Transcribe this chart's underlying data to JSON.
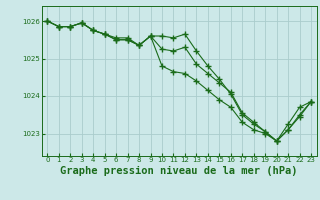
{
  "background_color": "#cce8e8",
  "grid_color": "#aacccc",
  "line_color": "#1a6b1a",
  "marker": "+",
  "marker_size": 4,
  "marker_lw": 1.0,
  "title": "Graphe pression niveau de la mer (hPa)",
  "title_fontsize": 7.5,
  "xlim": [
    -0.5,
    23.5
  ],
  "ylim": [
    1022.4,
    1026.4
  ],
  "yticks": [
    1023,
    1024,
    1025,
    1026
  ],
  "xticks": [
    0,
    1,
    2,
    3,
    4,
    5,
    6,
    7,
    8,
    9,
    10,
    11,
    12,
    13,
    14,
    15,
    16,
    17,
    18,
    19,
    20,
    21,
    22,
    23
  ],
  "series": [
    [
      1026.0,
      1025.85,
      1025.85,
      1025.95,
      1025.75,
      1025.65,
      1025.55,
      1025.55,
      1025.35,
      1025.6,
      1025.25,
      1025.2,
      1025.3,
      1024.85,
      1024.6,
      1024.35,
      1024.1,
      1023.55,
      1023.3,
      1023.05,
      1022.8,
      1023.25,
      1023.7,
      1023.85
    ],
    [
      1026.0,
      1025.85,
      1025.85,
      1025.95,
      1025.75,
      1025.65,
      1025.5,
      1025.5,
      1025.35,
      1025.6,
      1024.8,
      1024.65,
      1024.6,
      1024.4,
      1024.15,
      1023.9,
      1023.7,
      1023.3,
      1023.1,
      1023.0,
      1022.8,
      1023.1,
      1023.5,
      1023.85
    ],
    [
      1026.0,
      1025.85,
      1025.85,
      1025.95,
      1025.75,
      1025.65,
      1025.5,
      1025.5,
      1025.35,
      1025.6,
      1025.6,
      1025.55,
      1025.65,
      1025.2,
      1024.8,
      1024.45,
      1024.05,
      1023.5,
      1023.25,
      1023.05,
      1022.8,
      1023.1,
      1023.45,
      1023.85
    ]
  ]
}
